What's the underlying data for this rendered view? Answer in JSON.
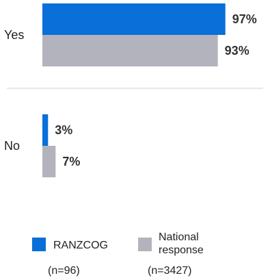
{
  "chart_data": {
    "type": "bar",
    "orientation": "horizontal",
    "categories": [
      "Yes",
      "No"
    ],
    "series": [
      {
        "name": "RANZCOG",
        "values": [
          97,
          3
        ],
        "color": "#0a6fd8"
      },
      {
        "name": "National response",
        "values": [
          93,
          7
        ],
        "color": "#b3b3bd"
      }
    ],
    "value_labels": {
      "RANZCOG": [
        "97%",
        "3%"
      ],
      "National response": [
        "93%",
        "7%"
      ]
    },
    "xlim": [
      0,
      100
    ],
    "title": "",
    "xlabel": "",
    "ylabel": "",
    "grid": false,
    "legend_position": "bottom",
    "legend": [
      {
        "label": "RANZCOG",
        "sample": "(n=96)"
      },
      {
        "label": "National response",
        "label_lines": [
          "National",
          "response"
        ],
        "sample": "(n=3427)"
      }
    ],
    "separator_color": "#d0d0d0"
  }
}
